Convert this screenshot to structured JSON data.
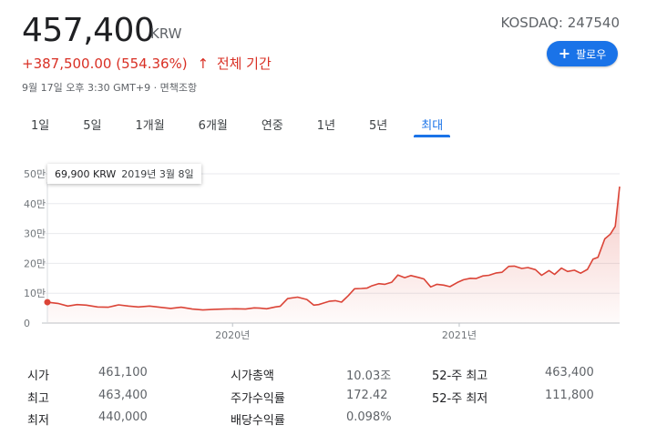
{
  "quote": {
    "price": "457,400",
    "currency": "KRW",
    "change": "+387,500.00 (554.36%)",
    "change_arrow": "↑",
    "change_period": "전체 기간",
    "timestamp": "9월 17일 오후 3:30 GMT+9 · 면책조항",
    "exchange": "KOSDAQ: 247540"
  },
  "follow_button": {
    "icon": "plus-icon",
    "label": "팔로우"
  },
  "tabs": [
    {
      "label": "1일"
    },
    {
      "label": "5일"
    },
    {
      "label": "1개월"
    },
    {
      "label": "6개월"
    },
    {
      "label": "연중"
    },
    {
      "label": "1년"
    },
    {
      "label": "5년"
    },
    {
      "label": "최대",
      "active": true
    }
  ],
  "tooltip": {
    "value": "69,900 KRW",
    "date": "2019년 3월 8일"
  },
  "colors": {
    "line": "#db4437",
    "accent": "#1a73e8",
    "negative": "#d93025"
  },
  "chart_data": {
    "type": "line",
    "title": "",
    "xlabel": "",
    "ylabel": "",
    "y_ticks": [
      "0",
      "10만",
      "20만",
      "30만",
      "40만",
      "50만"
    ],
    "y_tick_values": [
      0,
      100000,
      200000,
      300000,
      400000,
      500000
    ],
    "ylim": [
      0,
      500000
    ],
    "x_ticks": [
      "2020년",
      "2021년"
    ],
    "x_tick_dates": [
      "2020-01-01",
      "2021-01-01"
    ],
    "xlim": [
      "2019-03-08",
      "2021-09-17"
    ],
    "grid": true,
    "legend": "none",
    "highlight": {
      "date": "2019-03-08",
      "value": 69900
    },
    "series": [
      {
        "x": [
          "2019-03-08",
          "2019-03-25",
          "2019-04-10",
          "2019-04-25",
          "2019-05-10",
          "2019-05-28",
          "2019-06-14",
          "2019-07-01",
          "2019-07-17",
          "2019-08-02",
          "2019-08-20",
          "2019-09-05",
          "2019-09-23",
          "2019-10-10",
          "2019-10-28",
          "2019-11-14",
          "2019-12-02",
          "2019-12-18",
          "2020-01-06",
          "2020-01-22",
          "2020-02-05",
          "2020-02-14",
          "2020-02-25",
          "2020-03-10",
          "2020-03-18",
          "2020-03-30",
          "2020-04-15",
          "2020-04-30",
          "2020-05-11",
          "2020-05-19",
          "2020-05-27",
          "2020-06-05",
          "2020-06-15",
          "2020-06-25",
          "2020-07-06",
          "2020-07-16",
          "2020-07-27",
          "2020-08-05",
          "2020-08-12",
          "2020-08-24",
          "2020-09-03",
          "2020-09-14",
          "2020-09-24",
          "2020-10-05",
          "2020-10-15",
          "2020-10-27",
          "2020-11-05",
          "2020-11-16",
          "2020-11-26",
          "2020-12-07",
          "2020-12-17",
          "2020-12-29",
          "2021-01-08",
          "2021-01-19",
          "2021-01-28",
          "2021-02-08",
          "2021-02-18",
          "2021-03-02",
          "2021-03-11",
          "2021-03-22",
          "2021-03-31",
          "2021-04-12",
          "2021-04-22",
          "2021-05-04",
          "2021-05-14",
          "2021-05-26",
          "2021-06-04",
          "2021-06-15",
          "2021-06-25",
          "2021-07-06",
          "2021-07-16",
          "2021-07-27",
          "2021-08-05",
          "2021-08-13",
          "2021-08-24",
          "2021-09-02",
          "2021-09-10",
          "2021-09-17"
        ],
        "values": [
          69900,
          66000,
          57000,
          62000,
          60000,
          54000,
          53000,
          61000,
          57000,
          54000,
          57000,
          53000,
          49000,
          53000,
          47000,
          44000,
          46000,
          47000,
          48000,
          47000,
          51000,
          50000,
          48000,
          54000,
          56000,
          82000,
          87000,
          79000,
          60000,
          62000,
          67000,
          73000,
          75000,
          70000,
          92000,
          115000,
          116000,
          117000,
          124000,
          132000,
          130000,
          137000,
          161000,
          152000,
          159000,
          153000,
          148000,
          121000,
          130000,
          127000,
          122000,
          136000,
          145000,
          150000,
          149000,
          158000,
          160000,
          168000,
          170000,
          190000,
          191000,
          183000,
          186000,
          179000,
          160000,
          176000,
          163000,
          184000,
          173000,
          177000,
          167000,
          180000,
          214000,
          220000,
          282000,
          298000,
          324000,
          457400
        ]
      }
    ]
  }
}
